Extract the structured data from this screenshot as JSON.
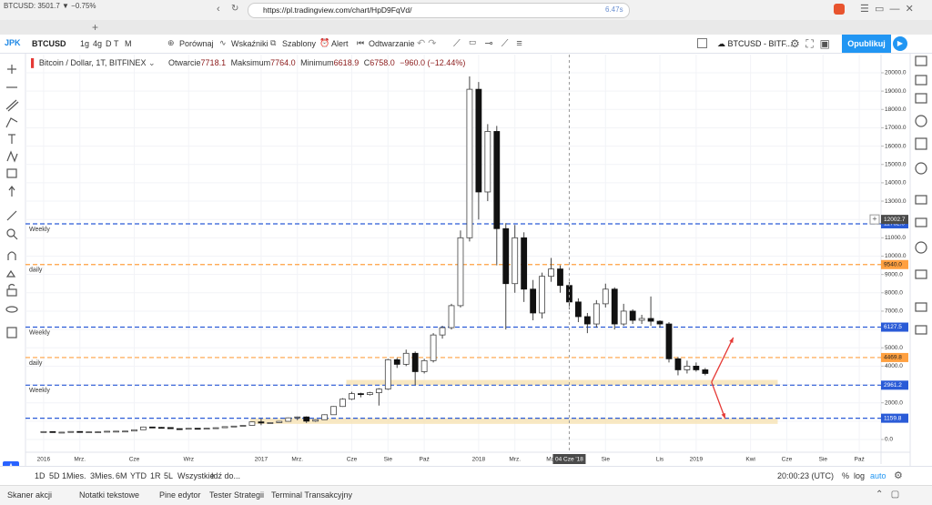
{
  "browser": {
    "tab_title": "BTCUSD: 3501.7 ▼ −0.75%",
    "new_tab": "+",
    "url": "https://pl.tradingview.com/chart/HpD9FqVd/",
    "load_time": "6.47s"
  },
  "toolbar": {
    "logo": "JPK",
    "symbol": "BTCUSD",
    "intervals": [
      "1g",
      "4g",
      "D",
      "T",
      "M"
    ],
    "buttons": [
      "Porównaj",
      "Wskaźniki",
      "Szablony",
      "Alert",
      "Odtwarzanie"
    ],
    "layout_name": "BTCUSD - BITF...",
    "publish": "Opublikuj"
  },
  "chart_data": {
    "type": "candlestick",
    "legend": {
      "symbol": "Bitcoin / Dollar, 1T, BITFINEX",
      "open_label": "Otwarcie",
      "open": "7718.1",
      "high_label": "Maksimum",
      "high": "7764.0",
      "low_label": "Minimum",
      "low": "6618.9",
      "close_label": "C",
      "close": "6758.0",
      "change": "−960.0 (−12.44%)"
    },
    "x": [
      0,
      0.5,
      1,
      1.5,
      2,
      2.5,
      3,
      3.5,
      4,
      4.5,
      5,
      5.5,
      6,
      6.5,
      7,
      7.5,
      8,
      8.5,
      9,
      9.5,
      10,
      10.5,
      11,
      11.5,
      12,
      12.5,
      13,
      13.5,
      14,
      14.5,
      15,
      15.5,
      16,
      16.5,
      17,
      17.5,
      18,
      18.5,
      19,
      19.5,
      20,
      20.5,
      21,
      21.5,
      22,
      22.5,
      23,
      23.5,
      24,
      24.5,
      25,
      25.5,
      26,
      26.5,
      27,
      27.5,
      28,
      28.5,
      29,
      29.5,
      30,
      30.5,
      31,
      31.5,
      32,
      32.5,
      33,
      33.5,
      34,
      34.5,
      35,
      35.5,
      36,
      36.5
    ],
    "open": [
      425,
      430,
      380,
      400,
      435,
      415,
      420,
      420,
      450,
      455,
      460,
      530,
      680,
      660,
      650,
      590,
      575,
      610,
      605,
      615,
      640,
      700,
      730,
      770,
      960,
      900,
      920,
      990,
      1180,
      1230,
      1000,
      1080,
      1350,
      1800,
      2200,
      2500,
      2450,
      2550,
      2750,
      4350,
      4100,
      4700,
      3700,
      4300,
      5700,
      6100,
      7300,
      11000,
      19100,
      13500,
      16800,
      11500,
      8500,
      11000,
      8200,
      6900,
      8900,
      9300,
      8400,
      7500,
      6700,
      6300,
      7400,
      8200,
      6300,
      7000,
      6500,
      6600,
      6450,
      6300,
      4400,
      3800,
      4000,
      3800
    ],
    "high": [
      450,
      440,
      420,
      445,
      440,
      430,
      435,
      460,
      465,
      470,
      540,
      700,
      690,
      680,
      660,
      600,
      615,
      620,
      620,
      650,
      710,
      740,
      780,
      980,
      1130,
      930,
      1000,
      1200,
      1250,
      1260,
      1100,
      1370,
      1820,
      2250,
      2600,
      2550,
      2600,
      2800,
      4400,
      4450,
      4900,
      4800,
      4400,
      5800,
      6200,
      7400,
      11400,
      19800,
      19500,
      17200,
      17100,
      11800,
      11700,
      11300,
      8700,
      9100,
      9900,
      9500,
      8600,
      7700,
      6900,
      7600,
      8500,
      8300,
      7400,
      7100,
      6800,
      7800,
      6500,
      6400,
      4500,
      4300,
      4200,
      3900
    ],
    "low": [
      410,
      370,
      375,
      395,
      405,
      410,
      412,
      415,
      440,
      445,
      455,
      520,
      640,
      630,
      580,
      560,
      570,
      595,
      600,
      610,
      635,
      690,
      725,
      760,
      780,
      880,
      910,
      980,
      1050,
      900,
      960,
      1070,
      1340,
      1780,
      2150,
      2300,
      2400,
      1850,
      2700,
      3900,
      4000,
      2970,
      3600,
      4200,
      5500,
      6000,
      7200,
      10800,
      12000,
      13000,
      9500,
      6000,
      8000,
      7500,
      6500,
      6600,
      8600,
      8000,
      7100,
      6400,
      5800,
      6100,
      7200,
      6000,
      6200,
      6300,
      6300,
      6200,
      6100,
      4200,
      3500,
      3600,
      3700,
      3500
    ],
    "close": [
      430,
      380,
      400,
      435,
      415,
      420,
      420,
      450,
      455,
      460,
      530,
      680,
      660,
      650,
      590,
      575,
      610,
      605,
      615,
      640,
      700,
      730,
      770,
      960,
      900,
      920,
      990,
      1180,
      1230,
      1000,
      1080,
      1350,
      1800,
      2200,
      2500,
      2450,
      2550,
      2750,
      4350,
      4100,
      4700,
      3700,
      4300,
      5700,
      6100,
      7300,
      11000,
      19100,
      13500,
      16800,
      11500,
      8500,
      11000,
      8200,
      6900,
      8900,
      9300,
      8400,
      7500,
      6700,
      6300,
      7400,
      8200,
      6300,
      7000,
      6500,
      6600,
      6450,
      6300,
      4400,
      3800,
      4000,
      3800,
      3600
    ],
    "up_color": "#ffffff",
    "down_color": "#111111",
    "wick_color": "#444444",
    "xlim": [
      -1,
      46.2
    ],
    "xticks": [
      {
        "value": 0,
        "label": "2016"
      },
      {
        "value": 2,
        "label": "Mrz."
      },
      {
        "value": 5,
        "label": "Cze"
      },
      {
        "value": 8,
        "label": "Wrz"
      },
      {
        "value": 12,
        "label": "2017"
      },
      {
        "value": 14,
        "label": "Mrz."
      },
      {
        "value": 17,
        "label": "Cze"
      },
      {
        "value": 19,
        "label": "Sie"
      },
      {
        "value": 21,
        "label": "Paź"
      },
      {
        "value": 24,
        "label": "2018"
      },
      {
        "value": 26,
        "label": "Mrz."
      },
      {
        "value": 28,
        "label": "Maj"
      },
      {
        "value": 31,
        "label": "Sie"
      },
      {
        "value": 34,
        "label": "Lis"
      },
      {
        "value": 36,
        "label": "2019"
      },
      {
        "value": 39,
        "label": "Kwi"
      },
      {
        "value": 41,
        "label": "Cze"
      },
      {
        "value": 43,
        "label": "Sie"
      },
      {
        "value": 45,
        "label": "Paź"
      }
    ],
    "ylim": [
      -695,
      20992
    ],
    "yticks": [
      {
        "value": 0,
        "label": "0.0"
      },
      {
        "value": 1000,
        "label": "1000.0"
      },
      {
        "value": 2000,
        "label": "2000.0"
      },
      {
        "value": 3000,
        "label": "3000.0"
      },
      {
        "value": 4000,
        "label": "4000.0"
      },
      {
        "value": 5000,
        "label": "5000.0"
      },
      {
        "value": 6000,
        "label": "6000.0"
      },
      {
        "value": 7000,
        "label": "7000.0"
      },
      {
        "value": 8000,
        "label": "8000.0"
      },
      {
        "value": 9000,
        "label": "9000.0"
      },
      {
        "value": 10000,
        "label": "10000.0"
      },
      {
        "value": 11000,
        "label": "11000.0"
      },
      {
        "value": 12000,
        "label": "12000.0"
      },
      {
        "value": 13000,
        "label": "13000.0"
      },
      {
        "value": 14000,
        "label": "14000.0"
      },
      {
        "value": 15000,
        "label": "15000.0"
      },
      {
        "value": 16000,
        "label": "16000.0"
      },
      {
        "value": 17000,
        "label": "17000.0"
      },
      {
        "value": 18000,
        "label": "18000.0"
      },
      {
        "value": 19000,
        "label": "19000.0"
      },
      {
        "value": 20000,
        "label": "20000.0"
      }
    ],
    "grid": true,
    "zones": [
      {
        "x": [
          16.7,
          40.5
        ],
        "y": [
          2961.2,
          3250
        ],
        "color": "#f6e2b3"
      },
      {
        "x": [
          11.4,
          40.5
        ],
        "y": [
          850,
          1159.8
        ],
        "color": "#f6e2b3"
      }
    ],
    "levels": [
      {
        "name": "Weekly",
        "price": {
          "value": 11762,
          "label": "11762.0"
        },
        "color": "#2a5bd7"
      },
      {
        "name": "daily",
        "price": {
          "value": 9540,
          "label": "9540.0"
        },
        "color": "#ffa040"
      },
      {
        "name": "Weekly",
        "price": 6127.5,
        "color": "#2a5bd7"
      },
      {
        "name": "daily",
        "price": 4469.8,
        "color": "#ffa040"
      },
      {
        "name": "Weekly",
        "price": 2961.2,
        "color": "#2a5bd7"
      },
      {
        "price": 1159.8,
        "color": "#2a5bd7"
      }
    ],
    "arrows": [
      {
        "x": [
          36.85,
          38.05
        ],
        "y": [
          3130,
          5560
        ],
        "color": "#e53935"
      },
      {
        "x": [
          36.85,
          37.6
        ],
        "y": [
          3130,
          1140
        ],
        "color": "#e53935"
      }
    ],
    "crosshair": {
      "x": 29,
      "x_label": "04 Cze '18",
      "y": 12002.7
    }
  },
  "bottom_bar": {
    "ranges": [
      "1D",
      "5D",
      "1Mies.",
      "3Mies.",
      "6M",
      "YTD",
      "1R",
      "5L",
      "Wszystkie"
    ],
    "goto": "Idź do...",
    "clock": "20:00:23 (UTC)",
    "scale_options": [
      "%",
      "log",
      "auto"
    ]
  },
  "bottom_panel": {
    "tabs": [
      "Skaner akcji",
      "Notatki tekstowe",
      "Pine edytor",
      "Tester Strategii",
      "Terminal Transakcyjny"
    ]
  }
}
